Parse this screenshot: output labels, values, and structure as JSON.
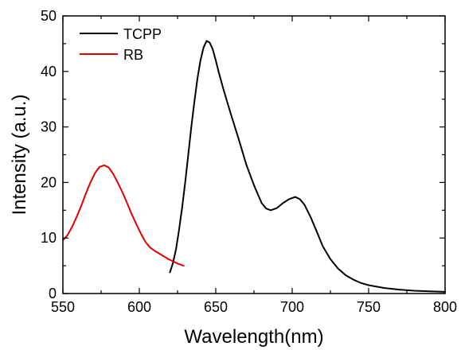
{
  "chart_data": {
    "type": "line",
    "xlabel": "Wavelength(nm)",
    "ylabel": "Intensity (a.u.)",
    "xlim": [
      550,
      800
    ],
    "ylim": [
      0,
      50
    ],
    "x_ticks": [
      550,
      600,
      650,
      700,
      750,
      800
    ],
    "y_ticks": [
      0,
      10,
      20,
      30,
      40,
      50
    ],
    "grid": false,
    "legend_position": "top-left",
    "series": [
      {
        "name": "TCPP",
        "color": "#000000",
        "points": [
          [
            620,
            3.8
          ],
          [
            622,
            5.5
          ],
          [
            624,
            8.0
          ],
          [
            626,
            11.5
          ],
          [
            628,
            15.5
          ],
          [
            630,
            20.0
          ],
          [
            632,
            25.0
          ],
          [
            634,
            30.0
          ],
          [
            636,
            34.5
          ],
          [
            638,
            38.7
          ],
          [
            640,
            42.0
          ],
          [
            642,
            44.3
          ],
          [
            644,
            45.5
          ],
          [
            646,
            45.2
          ],
          [
            648,
            44.0
          ],
          [
            650,
            42.0
          ],
          [
            652,
            39.8
          ],
          [
            655,
            36.8
          ],
          [
            660,
            32.2
          ],
          [
            665,
            27.8
          ],
          [
            670,
            23.2
          ],
          [
            675,
            19.5
          ],
          [
            680,
            16.3
          ],
          [
            683,
            15.3
          ],
          [
            686,
            15.0
          ],
          [
            690,
            15.4
          ],
          [
            694,
            16.3
          ],
          [
            698,
            17.0
          ],
          [
            702,
            17.4
          ],
          [
            705,
            17.0
          ],
          [
            708,
            16.0
          ],
          [
            712,
            13.8
          ],
          [
            716,
            11.2
          ],
          [
            720,
            8.5
          ],
          [
            725,
            6.2
          ],
          [
            730,
            4.5
          ],
          [
            735,
            3.3
          ],
          [
            740,
            2.5
          ],
          [
            745,
            1.9
          ],
          [
            750,
            1.5
          ],
          [
            760,
            1.0
          ],
          [
            770,
            0.7
          ],
          [
            780,
            0.5
          ],
          [
            790,
            0.4
          ],
          [
            800,
            0.3
          ]
        ]
      },
      {
        "name": "RB",
        "color": "#e00000",
        "points": [
          [
            550,
            9.6
          ],
          [
            553,
            10.5
          ],
          [
            556,
            12.0
          ],
          [
            559,
            13.8
          ],
          [
            562,
            15.8
          ],
          [
            565,
            18.0
          ],
          [
            568,
            20.0
          ],
          [
            571,
            21.7
          ],
          [
            574,
            22.8
          ],
          [
            577,
            23.1
          ],
          [
            580,
            22.7
          ],
          [
            583,
            21.5
          ],
          [
            586,
            19.9
          ],
          [
            589,
            18.2
          ],
          [
            592,
            16.3
          ],
          [
            595,
            14.3
          ],
          [
            598,
            12.5
          ],
          [
            601,
            10.8
          ],
          [
            604,
            9.3
          ],
          [
            607,
            8.3
          ],
          [
            610,
            7.7
          ],
          [
            613,
            7.2
          ],
          [
            616,
            6.7
          ],
          [
            619,
            6.2
          ],
          [
            622,
            5.8
          ],
          [
            625,
            5.4
          ],
          [
            629,
            5.0
          ]
        ]
      }
    ]
  }
}
